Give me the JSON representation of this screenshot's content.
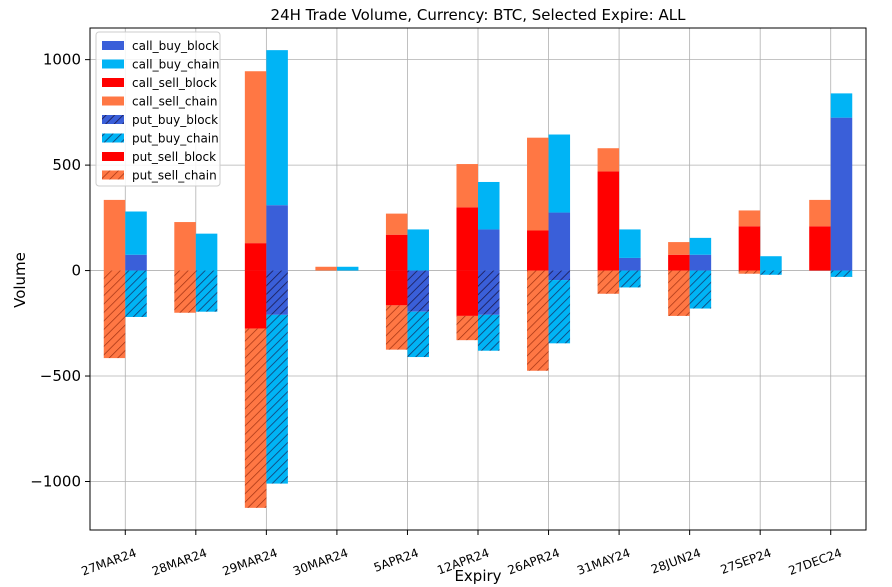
{
  "chart_data": {
    "type": "bar",
    "title": "24H Trade Volume, Currency: BTC, Selected Expire: ALL",
    "xlabel": "Expiry",
    "ylabel": "Volume",
    "ylim": [
      -1230,
      1150
    ],
    "yticks": [
      1000,
      500,
      0,
      -500,
      -1000
    ],
    "ytick_labels": [
      "1000",
      "500",
      "0",
      "−500",
      "−1000"
    ],
    "grid": true,
    "legend_position": "top-left",
    "categories": [
      "27MAR24",
      "28MAR24",
      "29MAR24",
      "30MAR24",
      "5APR24",
      "12APR24",
      "26APR24",
      "31MAY24",
      "28JUN24",
      "27SEP24",
      "27DEC24"
    ],
    "series": [
      {
        "name": "call_buy_block",
        "group": "buy",
        "sign": 1,
        "color": "#3A5FD9",
        "hatch": false,
        "values": [
          75,
          0,
          310,
          0,
          0,
          195,
          275,
          60,
          75,
          0,
          725
        ]
      },
      {
        "name": "call_buy_chain",
        "group": "buy",
        "sign": 1,
        "color": "#00B4F5",
        "hatch": false,
        "values": [
          205,
          175,
          735,
          18,
          195,
          225,
          370,
          135,
          80,
          68,
          115
        ]
      },
      {
        "name": "call_sell_block",
        "group": "sell",
        "sign": 1,
        "color": "#FF0000",
        "hatch": false,
        "values": [
          0,
          0,
          130,
          0,
          170,
          300,
          190,
          470,
          75,
          210,
          210
        ]
      },
      {
        "name": "call_sell_chain",
        "group": "sell",
        "sign": 1,
        "color": "#FF7744",
        "hatch": false,
        "values": [
          335,
          230,
          815,
          18,
          100,
          205,
          440,
          110,
          60,
          75,
          125
        ]
      },
      {
        "name": "put_buy_block",
        "group": "buy",
        "sign": -1,
        "color": "#3A5FD9",
        "hatch": true,
        "values": [
          0,
          0,
          210,
          0,
          195,
          210,
          45,
          0,
          0,
          0,
          0
        ]
      },
      {
        "name": "put_buy_chain",
        "group": "buy",
        "sign": -1,
        "color": "#00B4F5",
        "hatch": true,
        "values": [
          220,
          195,
          800,
          0,
          215,
          170,
          300,
          80,
          180,
          20,
          30
        ]
      },
      {
        "name": "put_sell_block",
        "group": "sell",
        "sign": -1,
        "color": "#FF0000",
        "hatch": false,
        "values": [
          0,
          0,
          275,
          0,
          165,
          215,
          0,
          0,
          0,
          0,
          0
        ]
      },
      {
        "name": "put_sell_chain",
        "group": "sell",
        "sign": -1,
        "color": "#FF7744",
        "hatch": true,
        "values": [
          415,
          200,
          850,
          0,
          210,
          115,
          475,
          110,
          215,
          15,
          0
        ]
      }
    ]
  }
}
